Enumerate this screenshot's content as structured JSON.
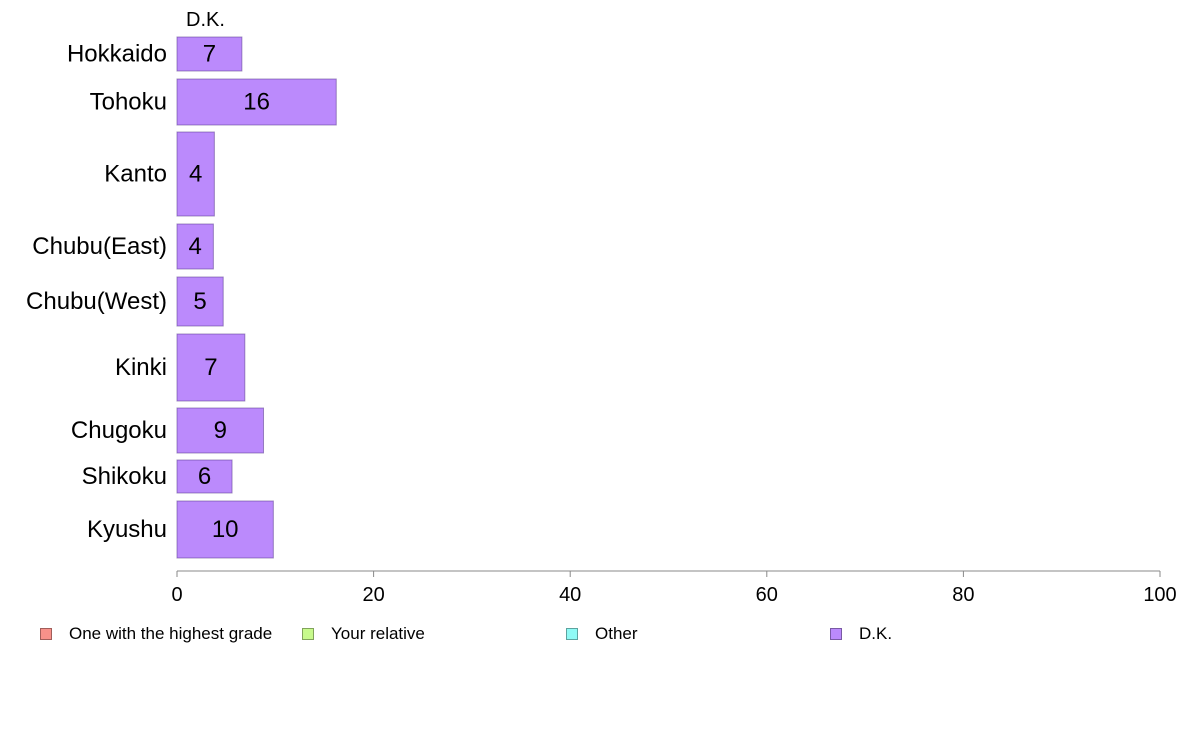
{
  "chart_data": {
    "type": "bar",
    "orientation": "horizontal",
    "stacked": true,
    "series_header": "D.K.",
    "categories": [
      "Hokkaido",
      "Tohoku",
      "Kanto",
      "Chubu(East)",
      "Chubu(West)",
      "Kinki",
      "Chugoku",
      "Shikoku",
      "Kyushu"
    ],
    "series": [
      {
        "name": "One with the highest grade",
        "color": "#f8918a",
        "values": [
          0,
          0,
          0,
          0,
          0,
          0,
          0,
          0,
          0
        ]
      },
      {
        "name": "Your relative",
        "color": "#c7fa8c",
        "values": [
          0,
          0,
          0,
          0,
          0,
          0,
          0,
          0,
          0
        ]
      },
      {
        "name": "Other",
        "color": "#8ffaf5",
        "values": [
          0,
          0,
          0,
          0,
          0,
          0,
          0,
          0,
          0
        ]
      },
      {
        "name": "D.K.",
        "color": "#bb8afc",
        "values": [
          6.6,
          16.2,
          3.8,
          3.7,
          4.7,
          6.9,
          8.8,
          5.6,
          9.8
        ],
        "labels": [
          "7",
          "16",
          "4",
          "4",
          "5",
          "7",
          "9",
          "6",
          "10"
        ]
      }
    ],
    "xlim": [
      0,
      100
    ],
    "xticks": [
      "0",
      "20",
      "40",
      "60",
      "80",
      "100"
    ],
    "grid": false,
    "legend_position": "bottom"
  }
}
